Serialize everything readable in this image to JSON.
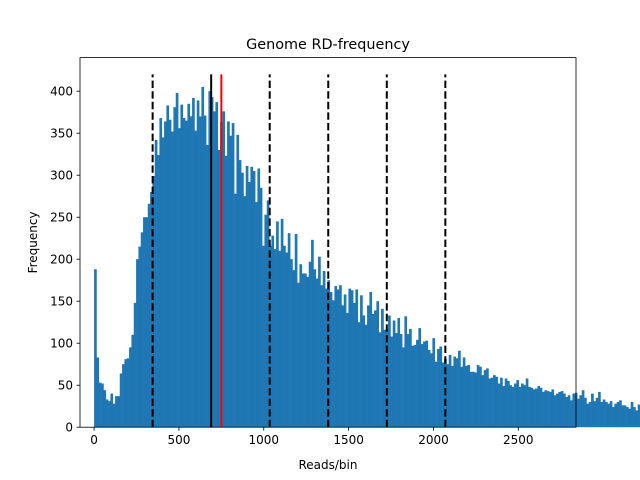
{
  "chart_data": {
    "type": "bar",
    "subtype": "histogram",
    "title": "Genome RD-frequency",
    "xlabel": "Reads/bin",
    "ylabel": "Frequency",
    "xlim": [
      -83,
      2840
    ],
    "ylim": [
      0,
      440
    ],
    "xticks": [
      0,
      500,
      1000,
      1500,
      2000,
      2500
    ],
    "yticks": [
      0,
      50,
      100,
      150,
      200,
      250,
      300,
      350,
      400
    ],
    "bin_start": 0,
    "bin_width": 13.75,
    "color": "#1f77b4",
    "values": [
      188,
      83,
      53,
      52,
      44,
      33,
      31,
      40,
      28,
      37,
      37,
      64,
      75,
      81,
      82,
      95,
      110,
      148,
      200,
      215,
      232,
      250,
      250,
      266,
      280,
      299,
      342,
      324,
      368,
      345,
      364,
      383,
      366,
      352,
      381,
      398,
      356,
      384,
      368,
      365,
      385,
      370,
      392,
      353,
      389,
      370,
      405,
      371,
      336,
      400,
      393,
      376,
      387,
      330,
      363,
      376,
      323,
      364,
      347,
      362,
      278,
      348,
      318,
      303,
      275,
      311,
      292,
      310,
      305,
      268,
      308,
      285,
      216,
      253,
      270,
      216,
      228,
      212,
      245,
      210,
      248,
      216,
      208,
      231,
      200,
      187,
      230,
      172,
      194,
      183,
      183,
      179,
      197,
      223,
      188,
      177,
      203,
      169,
      186,
      165,
      175,
      161,
      151,
      168,
      164,
      169,
      145,
      158,
      136,
      165,
      163,
      148,
      164,
      125,
      157,
      133,
      122,
      145,
      161,
      135,
      139,
      150,
      113,
      141,
      116,
      117,
      133,
      108,
      127,
      112,
      130,
      111,
      95,
      132,
      111,
      117,
      97,
      98,
      104,
      118,
      99,
      102,
      103,
      92,
      88,
      106,
      78,
      93,
      96,
      77,
      81,
      75,
      86,
      73,
      84,
      82,
      91,
      72,
      83,
      73,
      74,
      66,
      66,
      65,
      74,
      72,
      62,
      68,
      70,
      58,
      59,
      62,
      60,
      52,
      59,
      49,
      58,
      55,
      50,
      48,
      52,
      56,
      48,
      52,
      50,
      58,
      48,
      47,
      45,
      46,
      49,
      47,
      42,
      44,
      43,
      42,
      45,
      38,
      40,
      42,
      43,
      40,
      36,
      38,
      32,
      40,
      41,
      34,
      38,
      44,
      35,
      28,
      30,
      40,
      31,
      35,
      42,
      30,
      33,
      30,
      28,
      31,
      24,
      28,
      30,
      32,
      26,
      26,
      24,
      22,
      30,
      24,
      20,
      27,
      22,
      18,
      20,
      19,
      16,
      25,
      21,
      18,
      22,
      18,
      22,
      21,
      24,
      20,
      22,
      16,
      15,
      20,
      18,
      22,
      18,
      15,
      13,
      15,
      20,
      14,
      16,
      13,
      12,
      14
    ],
    "vertical_lines": [
      {
        "x": 345,
        "color": "#000000",
        "style": "dashed"
      },
      {
        "x": 690,
        "color": "#000000",
        "style": "solid"
      },
      {
        "x": 750,
        "color": "#ff0000",
        "style": "solid"
      },
      {
        "x": 1035,
        "color": "#000000",
        "style": "dashed"
      },
      {
        "x": 1380,
        "color": "#000000",
        "style": "dashed"
      },
      {
        "x": 1725,
        "color": "#000000",
        "style": "dashed"
      },
      {
        "x": 2070,
        "color": "#000000",
        "style": "dashed"
      }
    ],
    "vline_top": 420,
    "grid": false,
    "legend": "none"
  }
}
